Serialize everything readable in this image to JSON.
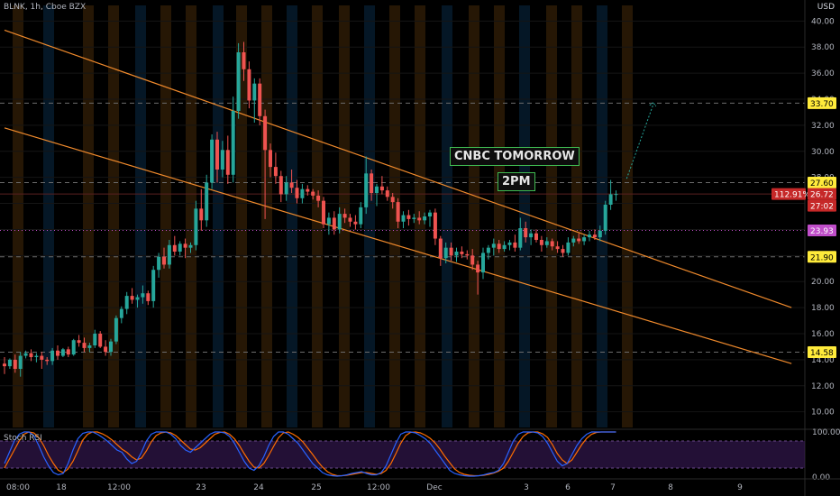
{
  "header": {
    "symbol": "BLNK, 1h, Cboe BZX",
    "currency": "USD"
  },
  "indicator": {
    "name": "Stoch RSI"
  },
  "annotations": {
    "line1": "CNBC TOMORROW",
    "line2": "2PM"
  },
  "colors": {
    "background": "#000000",
    "up_candle": "#26a69a",
    "down_candle": "#ef5350",
    "channel": "#f08a2c",
    "dashed_level": "#6b6b6b",
    "dotted_level": "#c04ec9",
    "session_highlight": "#2a1a06",
    "session_highlight_alt": "#061a2a",
    "stoch_k": "#2962ff",
    "stoch_d": "#ff6d00",
    "stoch_band": "#3a1a5a",
    "price_tag_red": "#c62828",
    "price_tag_yellow": "#ffeb3b",
    "annotation_border": "#3fb950",
    "projection": "#26a69a"
  },
  "chart_data": {
    "type": "candlestick",
    "title": "BLNK, 1h, Cboe BZX",
    "ylabel": "USD",
    "ylim": [
      8.8,
      41.2
    ],
    "y_ticks": [
      "40.00",
      "38.00",
      "36.00",
      "34.00",
      "32.00",
      "30.00",
      "28.00",
      "26.00",
      "24.00",
      "22.00",
      "20.00",
      "18.00",
      "16.00",
      "14.00",
      "12.00",
      "10.00"
    ],
    "x_ticks": [
      "08:00",
      "18",
      "12:00",
      "23",
      "24",
      "25",
      "12:00",
      "Dec",
      "3",
      "6",
      "7",
      "8",
      "9"
    ],
    "price_tags": [
      {
        "label": "33.70",
        "value": 33.7,
        "style": "yellow"
      },
      {
        "label": "27.60",
        "value": 27.6,
        "style": "yellow"
      },
      {
        "label": "112.91%",
        "value": 26.72,
        "style": "red"
      },
      {
        "label": "26.72",
        "value": 26.72,
        "style": "red"
      },
      {
        "label": "27:02",
        "value": 25.5,
        "style": "red"
      },
      {
        "label": "23.93",
        "value": 23.93,
        "style": "magenta"
      },
      {
        "label": "21.90",
        "value": 21.9,
        "style": "yellow"
      },
      {
        "label": "14.58",
        "value": 14.58,
        "style": "yellow"
      }
    ],
    "horizontal_levels": [
      {
        "value": 33.7,
        "style": "dashed"
      },
      {
        "value": 27.6,
        "style": "dashed"
      },
      {
        "value": 23.93,
        "style": "dotted"
      },
      {
        "value": 21.9,
        "style": "dashed"
      },
      {
        "value": 14.58,
        "style": "dashed"
      }
    ],
    "channel_lines": [
      {
        "name": "upper",
        "start": [
          0,
          39.3
        ],
        "end": [
          148,
          18.0
        ]
      },
      {
        "name": "lower",
        "start": [
          0,
          31.8
        ],
        "end": [
          148,
          13.7
        ]
      }
    ],
    "projection": {
      "start": [
        117,
        27.9
      ],
      "end": [
        122,
        33.6
      ]
    },
    "candles": [
      [
        13.7,
        14.2,
        12.9,
        13.5
      ],
      [
        13.5,
        14.1,
        13.3,
        14.0
      ],
      [
        14.0,
        14.4,
        13.0,
        13.3
      ],
      [
        13.3,
        14.6,
        12.7,
        14.3
      ],
      [
        14.3,
        14.7,
        14.1,
        14.5
      ],
      [
        14.5,
        14.8,
        13.9,
        14.2
      ],
      [
        14.2,
        14.5,
        13.8,
        14.3
      ],
      [
        14.3,
        14.6,
        13.3,
        14.0
      ],
      [
        14.0,
        14.2,
        13.6,
        13.9
      ],
      [
        13.9,
        14.9,
        13.6,
        14.7
      ],
      [
        14.7,
        15.1,
        14.0,
        14.3
      ],
      [
        14.3,
        14.9,
        14.2,
        14.8
      ],
      [
        14.8,
        15.0,
        14.2,
        14.4
      ],
      [
        14.4,
        15.6,
        14.3,
        15.5
      ],
      [
        15.5,
        15.9,
        15.0,
        15.3
      ],
      [
        15.3,
        15.7,
        14.6,
        14.9
      ],
      [
        14.9,
        15.3,
        14.6,
        15.1
      ],
      [
        15.1,
        16.3,
        14.9,
        16.0
      ],
      [
        16.0,
        16.2,
        14.9,
        15.0
      ],
      [
        15.0,
        15.5,
        14.3,
        14.6
      ],
      [
        14.6,
        15.6,
        14.3,
        15.4
      ],
      [
        15.4,
        17.4,
        15.2,
        17.2
      ],
      [
        17.2,
        18.1,
        16.8,
        17.9
      ],
      [
        17.9,
        19.2,
        17.5,
        18.9
      ],
      [
        18.9,
        19.5,
        18.3,
        18.6
      ],
      [
        18.6,
        19.0,
        18.0,
        18.8
      ],
      [
        18.8,
        19.7,
        18.3,
        19.1
      ],
      [
        19.1,
        19.3,
        18.2,
        18.5
      ],
      [
        18.5,
        21.2,
        18.0,
        20.9
      ],
      [
        20.9,
        22.2,
        20.3,
        21.9
      ],
      [
        21.9,
        22.6,
        21.0,
        21.3
      ],
      [
        21.3,
        23.2,
        21.0,
        22.8
      ],
      [
        22.8,
        23.5,
        22.0,
        22.3
      ],
      [
        22.3,
        23.1,
        22.0,
        22.9
      ],
      [
        22.9,
        23.3,
        21.8,
        22.6
      ],
      [
        22.6,
        23.0,
        22.2,
        22.8
      ],
      [
        22.8,
        26.2,
        22.4,
        25.6
      ],
      [
        25.6,
        27.1,
        23.9,
        24.7
      ],
      [
        24.7,
        28.2,
        24.2,
        27.6
      ],
      [
        27.6,
        31.3,
        27.1,
        30.9
      ],
      [
        30.9,
        31.5,
        27.6,
        28.6
      ],
      [
        28.6,
        30.8,
        28.0,
        30.1
      ],
      [
        30.1,
        31.2,
        27.5,
        28.2
      ],
      [
        28.2,
        34.2,
        27.6,
        33.1
      ],
      [
        33.1,
        38.3,
        32.5,
        37.6
      ],
      [
        37.6,
        38.4,
        35.4,
        36.3
      ],
      [
        36.3,
        36.9,
        33.3,
        33.9
      ],
      [
        33.9,
        35.6,
        32.2,
        35.2
      ],
      [
        35.2,
        35.6,
        32.0,
        32.7
      ],
      [
        32.7,
        33.2,
        24.8,
        30.1
      ],
      [
        30.1,
        30.6,
        28.0,
        28.8
      ],
      [
        28.8,
        29.9,
        27.5,
        28.1
      ],
      [
        28.1,
        28.5,
        26.1,
        26.7
      ],
      [
        26.7,
        28.1,
        26.2,
        27.6
      ],
      [
        27.6,
        28.6,
        26.8,
        27.2
      ],
      [
        27.2,
        27.8,
        26.0,
        26.4
      ],
      [
        26.4,
        27.5,
        26.0,
        27.1
      ],
      [
        27.1,
        27.4,
        26.6,
        26.9
      ],
      [
        26.9,
        27.1,
        26.3,
        26.6
      ],
      [
        26.6,
        27.0,
        25.7,
        26.2
      ],
      [
        26.2,
        26.5,
        24.1,
        24.4
      ],
      [
        24.4,
        25.3,
        23.6,
        24.9
      ],
      [
        24.9,
        25.4,
        23.6,
        24.0
      ],
      [
        24.0,
        25.7,
        23.7,
        25.2
      ],
      [
        25.2,
        25.6,
        24.5,
        24.9
      ],
      [
        24.9,
        25.2,
        24.2,
        24.6
      ],
      [
        24.6,
        25.1,
        24.0,
        24.4
      ],
      [
        24.4,
        26.1,
        24.1,
        25.7
      ],
      [
        25.7,
        29.6,
        25.2,
        28.3
      ],
      [
        28.3,
        28.6,
        26.2,
        26.8
      ],
      [
        26.8,
        27.5,
        25.8,
        27.3
      ],
      [
        27.3,
        28.1,
        26.7,
        27.0
      ],
      [
        27.0,
        27.3,
        26.2,
        26.5
      ],
      [
        26.5,
        26.8,
        25.6,
        26.1
      ],
      [
        26.1,
        26.4,
        24.1,
        24.6
      ],
      [
        24.6,
        25.4,
        24.1,
        25.1
      ],
      [
        25.1,
        25.5,
        24.3,
        24.8
      ],
      [
        24.8,
        25.2,
        24.5,
        24.9
      ],
      [
        24.9,
        25.4,
        24.4,
        24.7
      ],
      [
        24.7,
        25.3,
        24.4,
        25.0
      ],
      [
        25.0,
        25.5,
        24.2,
        25.3
      ],
      [
        25.3,
        25.6,
        22.8,
        23.3
      ],
      [
        23.3,
        23.5,
        21.2,
        21.8
      ],
      [
        21.8,
        23.0,
        21.4,
        22.6
      ],
      [
        22.6,
        23.0,
        21.6,
        22.0
      ],
      [
        22.0,
        22.6,
        21.5,
        22.3
      ],
      [
        22.3,
        22.7,
        21.8,
        22.1
      ],
      [
        22.1,
        22.4,
        21.7,
        22.0
      ],
      [
        22.0,
        22.5,
        20.9,
        21.3
      ],
      [
        21.3,
        21.6,
        19.0,
        20.7
      ],
      [
        20.7,
        22.6,
        20.2,
        22.2
      ],
      [
        22.2,
        22.8,
        21.7,
        22.6
      ],
      [
        22.6,
        23.3,
        22.0,
        22.9
      ],
      [
        22.9,
        23.2,
        22.2,
        22.5
      ],
      [
        22.5,
        23.1,
        22.3,
        22.8
      ],
      [
        22.8,
        23.2,
        22.4,
        23.0
      ],
      [
        23.0,
        23.6,
        22.3,
        22.6
      ],
      [
        22.6,
        24.9,
        22.4,
        24.1
      ],
      [
        24.1,
        24.6,
        23.0,
        23.4
      ],
      [
        23.4,
        24.0,
        22.8,
        23.7
      ],
      [
        23.7,
        24.0,
        23.0,
        23.2
      ],
      [
        23.2,
        23.5,
        22.3,
        22.8
      ],
      [
        22.8,
        23.4,
        22.6,
        23.1
      ],
      [
        23.1,
        23.3,
        22.4,
        22.7
      ],
      [
        22.7,
        23.1,
        22.2,
        22.5
      ],
      [
        22.5,
        22.8,
        21.9,
        22.2
      ],
      [
        22.2,
        23.4,
        22.0,
        23.0
      ],
      [
        23.0,
        23.5,
        22.7,
        23.3
      ],
      [
        23.3,
        23.7,
        22.9,
        23.1
      ],
      [
        23.1,
        23.6,
        22.8,
        23.4
      ],
      [
        23.4,
        23.9,
        23.1,
        23.6
      ],
      [
        23.6,
        24.0,
        23.2,
        23.4
      ],
      [
        23.4,
        24.3,
        23.1,
        23.9
      ],
      [
        23.9,
        26.2,
        23.6,
        25.9
      ],
      [
        25.9,
        27.8,
        25.5,
        26.7
      ],
      [
        26.7,
        27.0,
        26.2,
        26.72
      ]
    ],
    "stoch_rsi": {
      "ylim": [
        0,
        100
      ],
      "y_ticks": [
        "100.00",
        "0.00"
      ],
      "band": [
        20,
        80
      ],
      "k": [
        30,
        55,
        80,
        95,
        100,
        100,
        92,
        70,
        45,
        25,
        10,
        5,
        8,
        30,
        60,
        85,
        97,
        100,
        100,
        95,
        88,
        80,
        70,
        60,
        55,
        40,
        30,
        35,
        55,
        80,
        95,
        100,
        100,
        100,
        95,
        85,
        70,
        60,
        55,
        65,
        75,
        85,
        95,
        100,
        100,
        98,
        90,
        75,
        55,
        35,
        20,
        15,
        25,
        45,
        70,
        90,
        100,
        100,
        95,
        85,
        75,
        60,
        45,
        30,
        20,
        10,
        5,
        3,
        2,
        3,
        5,
        8,
        10,
        12,
        8,
        5,
        5,
        10,
        25,
        50,
        75,
        95,
        100,
        100,
        98,
        92,
        85,
        75,
        60,
        45,
        30,
        15,
        8,
        5,
        3,
        2,
        2,
        3,
        5,
        8,
        10,
        15,
        30,
        55,
        80,
        95,
        100,
        100,
        100,
        98,
        90,
        75,
        55,
        35,
        25,
        30,
        50,
        70,
        85,
        95,
        100,
        100,
        100,
        100,
        100,
        100
      ],
      "d": [
        20,
        40,
        60,
        80,
        95,
        100,
        98,
        88,
        70,
        48,
        30,
        15,
        10,
        18,
        35,
        58,
        82,
        95,
        100,
        100,
        96,
        90,
        82,
        72,
        62,
        55,
        45,
        38,
        42,
        58,
        78,
        92,
        98,
        100,
        98,
        92,
        82,
        72,
        62,
        60,
        65,
        75,
        85,
        95,
        99,
        100,
        95,
        85,
        70,
        52,
        35,
        22,
        20,
        30,
        48,
        68,
        87,
        98,
        100,
        95,
        88,
        78,
        64,
        50,
        35,
        22,
        12,
        6,
        3,
        3,
        4,
        6,
        8,
        10,
        10,
        8,
        6,
        8,
        15,
        30,
        52,
        75,
        92,
        99,
        100,
        98,
        93,
        86,
        76,
        62,
        46,
        32,
        18,
        10,
        6,
        4,
        3,
        3,
        4,
        6,
        9,
        13,
        20,
        35,
        55,
        75,
        90,
        98,
        100,
        100,
        96,
        88,
        72,
        52,
        38,
        30,
        38,
        55,
        72,
        86,
        95,
        99,
        100,
        100,
        100,
        100
      ]
    }
  }
}
